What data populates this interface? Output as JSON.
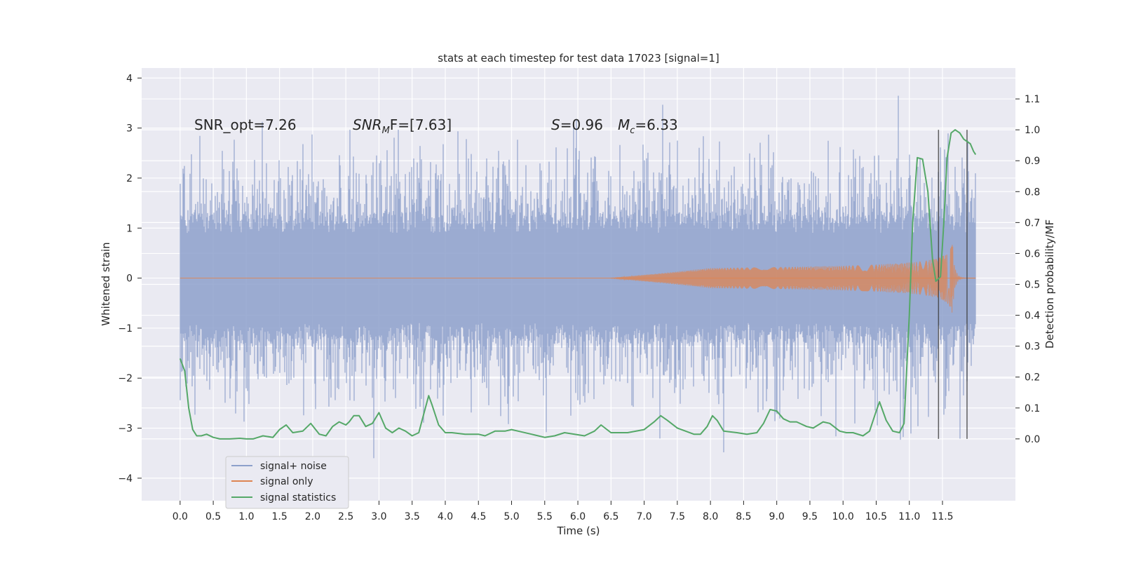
{
  "chart_data": {
    "type": "line",
    "title": "stats at each timestep for test data 17023 [signal=1]",
    "xlabel": "Time (s)",
    "ylabel": "Whitened strain",
    "y2label": "Detection probability/MF",
    "xlim": [
      -0.58,
      12.6
    ],
    "ylim": [
      -4.45,
      4.2
    ],
    "y2lim": [
      -0.2,
      1.2
    ],
    "x_ticks": [
      0.0,
      0.5,
      1.0,
      1.5,
      2.0,
      2.5,
      3.0,
      3.5,
      4.0,
      4.5,
      5.0,
      5.5,
      6.0,
      6.5,
      7.0,
      7.5,
      8.0,
      8.5,
      9.0,
      9.5,
      10.0,
      10.5,
      11.0,
      11.5
    ],
    "x_tick_labels": [
      "0.0",
      "0.5",
      "1.0",
      "1.5",
      "2.0",
      "2.5",
      "3.0",
      "3.5",
      "4.0",
      "4.5",
      "5.0",
      "5.5",
      "6.0",
      "6.5",
      "7.0",
      "7.5",
      "8.0",
      "8.5",
      "9.0",
      "9.5",
      "10.0",
      "10.5",
      "11.0",
      "11.5"
    ],
    "y_ticks": [
      4,
      3,
      2,
      1,
      0,
      -1,
      -2,
      -3,
      -4
    ],
    "y_tick_labels": [
      "4",
      "3",
      "2",
      "1",
      "0",
      "−1",
      "−2",
      "−3",
      "−4"
    ],
    "y2_ticks": [
      1.1,
      1.0,
      0.9,
      0.8,
      0.7,
      0.6,
      0.5,
      0.4,
      0.3,
      0.2,
      0.1,
      0.0
    ],
    "y2_tick_labels": [
      "1.1",
      "1.0",
      "0.9",
      "0.8",
      "0.7",
      "0.6",
      "0.5",
      "0.4",
      "0.3",
      "0.2",
      "0.1",
      "0.0"
    ],
    "grid": true,
    "legend_position": "lower-left",
    "annotations": [
      {
        "id": "snr-opt",
        "text": "SNR_opt=7.26"
      },
      {
        "id": "snr-mf",
        "text": "SNR_MF=[7.63]",
        "prefix": "SNR",
        "sub": "M",
        "rest": "F=[7.63]"
      },
      {
        "id": "s-value",
        "text": "S=0.96",
        "prefix": "S",
        "rest": "=0.96"
      },
      {
        "id": "mc-value",
        "text": "M_c=6.33",
        "prefix": "M",
        "sub": "c",
        "rest": "=6.33"
      }
    ],
    "vertical_lines_x": [
      11.44,
      11.87
    ],
    "series": [
      {
        "name": "signal+ noise",
        "axis": "left",
        "kind": "noisy-band",
        "color": "#8da0cb",
        "x_range": [
          0.0,
          12.0
        ],
        "typical_abs_max": 1.2,
        "peak_max": 3.8,
        "peak_min": -3.6
      },
      {
        "name": "signal only",
        "axis": "left",
        "kind": "chirp",
        "color": "#dd8452",
        "x_range": [
          0.0,
          12.0
        ],
        "start_time": 6.5,
        "peak_time": 11.65,
        "peak_amplitude": 0.75
      },
      {
        "name": "signal statistics",
        "axis": "right",
        "color": "#55a868",
        "points": [
          [
            0.0,
            0.26
          ],
          [
            0.07,
            0.22
          ],
          [
            0.13,
            0.1
          ],
          [
            0.19,
            0.03
          ],
          [
            0.25,
            0.01
          ],
          [
            0.32,
            0.01
          ],
          [
            0.4,
            0.015
          ],
          [
            0.5,
            0.005
          ],
          [
            0.6,
            0.0
          ],
          [
            0.75,
            0.0
          ],
          [
            0.9,
            0.002
          ],
          [
            1.0,
            0.0
          ],
          [
            1.1,
            0.0
          ],
          [
            1.25,
            0.01
          ],
          [
            1.4,
            0.005
          ],
          [
            1.5,
            0.03
          ],
          [
            1.6,
            0.045
          ],
          [
            1.7,
            0.02
          ],
          [
            1.85,
            0.025
          ],
          [
            1.97,
            0.05
          ],
          [
            2.1,
            0.015
          ],
          [
            2.2,
            0.01
          ],
          [
            2.3,
            0.04
          ],
          [
            2.4,
            0.055
          ],
          [
            2.5,
            0.045
          ],
          [
            2.55,
            0.055
          ],
          [
            2.62,
            0.075
          ],
          [
            2.7,
            0.075
          ],
          [
            2.8,
            0.04
          ],
          [
            2.9,
            0.05
          ],
          [
            3.0,
            0.085
          ],
          [
            3.1,
            0.035
          ],
          [
            3.2,
            0.02
          ],
          [
            3.3,
            0.035
          ],
          [
            3.4,
            0.025
          ],
          [
            3.5,
            0.01
          ],
          [
            3.6,
            0.02
          ],
          [
            3.7,
            0.1
          ],
          [
            3.75,
            0.14
          ],
          [
            3.8,
            0.11
          ],
          [
            3.9,
            0.045
          ],
          [
            4.0,
            0.02
          ],
          [
            4.1,
            0.02
          ],
          [
            4.3,
            0.015
          ],
          [
            4.5,
            0.015
          ],
          [
            4.6,
            0.01
          ],
          [
            4.75,
            0.025
          ],
          [
            4.9,
            0.025
          ],
          [
            5.0,
            0.03
          ],
          [
            5.1,
            0.025
          ],
          [
            5.3,
            0.015
          ],
          [
            5.5,
            0.005
          ],
          [
            5.65,
            0.01
          ],
          [
            5.8,
            0.02
          ],
          [
            5.95,
            0.015
          ],
          [
            6.1,
            0.01
          ],
          [
            6.25,
            0.025
          ],
          [
            6.35,
            0.045
          ],
          [
            6.5,
            0.02
          ],
          [
            6.75,
            0.02
          ],
          [
            7.0,
            0.03
          ],
          [
            7.15,
            0.055
          ],
          [
            7.25,
            0.075
          ],
          [
            7.35,
            0.06
          ],
          [
            7.5,
            0.035
          ],
          [
            7.75,
            0.015
          ],
          [
            7.85,
            0.015
          ],
          [
            7.95,
            0.04
          ],
          [
            8.03,
            0.075
          ],
          [
            8.1,
            0.06
          ],
          [
            8.2,
            0.025
          ],
          [
            8.4,
            0.02
          ],
          [
            8.55,
            0.015
          ],
          [
            8.7,
            0.02
          ],
          [
            8.8,
            0.05
          ],
          [
            8.9,
            0.095
          ],
          [
            9.0,
            0.09
          ],
          [
            9.1,
            0.065
          ],
          [
            9.2,
            0.055
          ],
          [
            9.3,
            0.055
          ],
          [
            9.45,
            0.04
          ],
          [
            9.55,
            0.035
          ],
          [
            9.7,
            0.055
          ],
          [
            9.8,
            0.05
          ],
          [
            9.95,
            0.025
          ],
          [
            10.05,
            0.02
          ],
          [
            10.15,
            0.02
          ],
          [
            10.3,
            0.01
          ],
          [
            10.4,
            0.025
          ],
          [
            10.5,
            0.09
          ],
          [
            10.55,
            0.12
          ],
          [
            10.65,
            0.06
          ],
          [
            10.75,
            0.025
          ],
          [
            10.85,
            0.02
          ],
          [
            10.92,
            0.05
          ],
          [
            11.0,
            0.4
          ],
          [
            11.05,
            0.7
          ],
          [
            11.12,
            0.91
          ],
          [
            11.2,
            0.905
          ],
          [
            11.28,
            0.8
          ],
          [
            11.35,
            0.58
          ],
          [
            11.4,
            0.51
          ],
          [
            11.47,
            0.525
          ],
          [
            11.52,
            0.7
          ],
          [
            11.57,
            0.91
          ],
          [
            11.63,
            0.99
          ],
          [
            11.69,
            1.0
          ],
          [
            11.76,
            0.99
          ],
          [
            11.82,
            0.97
          ],
          [
            11.92,
            0.955
          ],
          [
            11.97,
            0.93
          ],
          [
            12.0,
            0.92
          ]
        ]
      }
    ]
  }
}
